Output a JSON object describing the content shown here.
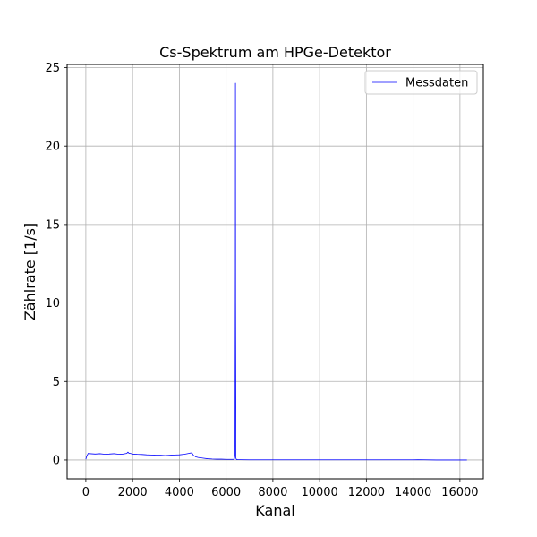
{
  "chart_data": {
    "type": "line",
    "title": "Cs-Spektrum am HPGe-Detektor",
    "xlabel": "Kanal",
    "ylabel": "Zählrate [1/s]",
    "xlim": [
      -800,
      17000
    ],
    "ylim": [
      -1.2,
      25.2
    ],
    "xticks": [
      0,
      2000,
      4000,
      6000,
      8000,
      10000,
      12000,
      14000,
      16000
    ],
    "xtick_labels": [
      "0",
      "2000",
      "4000",
      "6000",
      "8000",
      "10000",
      "12000",
      "14000",
      "16000"
    ],
    "yticks": [
      0,
      5,
      10,
      15,
      20,
      25
    ],
    "ytick_labels": [
      "0",
      "5",
      "10",
      "15",
      "20",
      "25"
    ],
    "grid": true,
    "legend_position": "top-right",
    "series": [
      {
        "name": "Messdaten",
        "color": "#0000ff",
        "x": [
          0,
          30,
          60,
          100,
          150,
          200,
          400,
          600,
          800,
          1000,
          1200,
          1400,
          1600,
          1750,
          1800,
          1850,
          1900,
          2000,
          2200,
          2400,
          2600,
          2800,
          3000,
          3200,
          3400,
          3600,
          3800,
          4000,
          4200,
          4400,
          4500,
          4550,
          4600,
          4700,
          4800,
          5000,
          5200,
          5400,
          5600,
          5800,
          6000,
          6200,
          6300,
          6350,
          6380,
          6395,
          6400,
          6405,
          6420,
          6450,
          6500,
          6600,
          7000,
          8000,
          9000,
          10000,
          11000,
          12000,
          13000,
          14000,
          14200,
          15000,
          16000,
          16300
        ],
        "y": [
          0.05,
          0.2,
          0.3,
          0.42,
          0.4,
          0.4,
          0.38,
          0.4,
          0.37,
          0.38,
          0.4,
          0.37,
          0.38,
          0.42,
          0.5,
          0.42,
          0.42,
          0.38,
          0.36,
          0.35,
          0.33,
          0.32,
          0.3,
          0.3,
          0.28,
          0.3,
          0.32,
          0.33,
          0.36,
          0.42,
          0.45,
          0.42,
          0.3,
          0.2,
          0.16,
          0.12,
          0.08,
          0.06,
          0.05,
          0.05,
          0.04,
          0.04,
          0.04,
          0.05,
          0.3,
          12.0,
          24.0,
          10.0,
          0.1,
          0.03,
          0.02,
          0.02,
          0.01,
          0.01,
          0.01,
          0.01,
          0.01,
          0.01,
          0.01,
          0.01,
          0.02,
          0.0,
          0.0,
          0.0
        ]
      }
    ]
  }
}
